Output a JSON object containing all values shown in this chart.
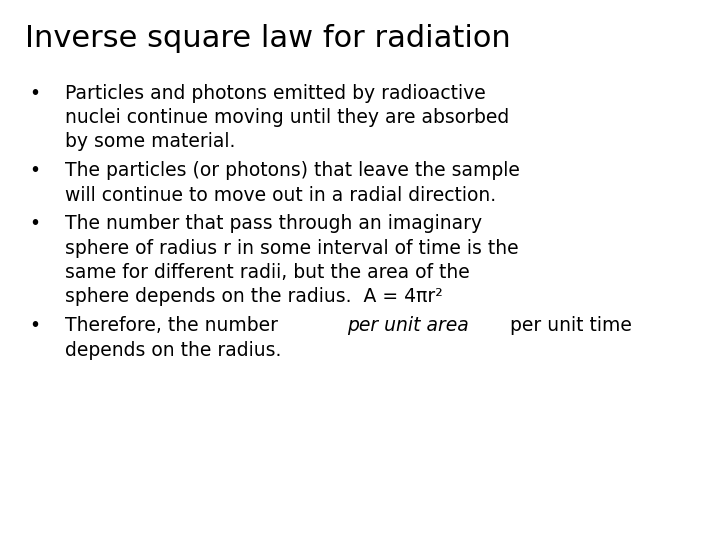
{
  "title": "Inverse square law for radiation",
  "title_fontsize": 22,
  "title_fontweight": "normal",
  "background_color": "#ffffff",
  "text_color": "#000000",
  "body_fontsize": 13.5,
  "bullet_char": "•",
  "font_family": "DejaVu Sans",
  "bullet_items": [
    {
      "text": "Particles and photons emitted by radioactive\nnuclei continue moving until they are absorbed\nby some material.",
      "mixed": false
    },
    {
      "text": "The particles (or photons) that leave the sample\nwill continue to move out in a radial direction.",
      "mixed": false
    },
    {
      "text": "The number that pass through an imaginary\nsphere of radius r in some interval of time is the\nsame for different radii, but the area of the\nsphere depends on the radius.  A = 4πr²",
      "mixed": false
    },
    {
      "mixed": true,
      "parts_line1": [
        {
          "text": "Therefore, the number ",
          "italic": false
        },
        {
          "text": "per unit area",
          "italic": true
        },
        {
          "text": " per unit time",
          "italic": false
        }
      ],
      "line2": "depends on the radius."
    }
  ]
}
